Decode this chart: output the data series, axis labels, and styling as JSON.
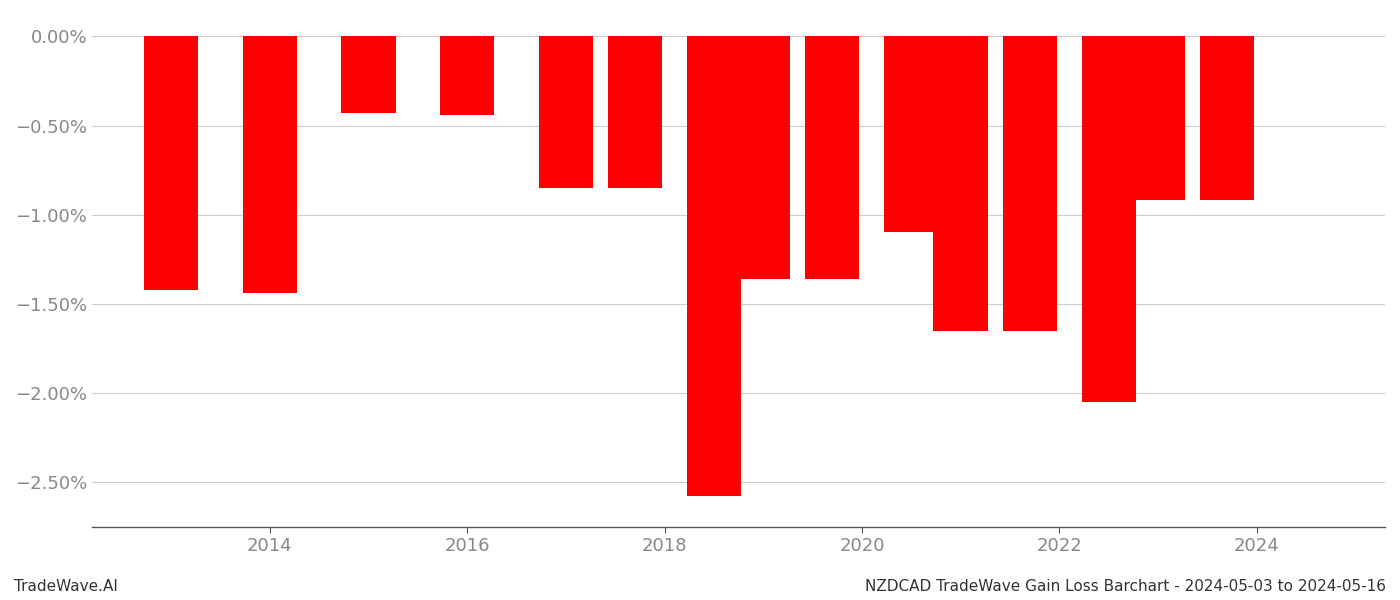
{
  "years": [
    2013,
    2014,
    2015,
    2016,
    2017,
    2017.7,
    2018.5,
    2019,
    2019.7,
    2020.5,
    2021,
    2021.7,
    2022.5,
    2023,
    2023.7
  ],
  "values": [
    -1.42,
    -1.44,
    -0.43,
    -0.44,
    -0.85,
    -0.85,
    -2.58,
    -1.36,
    -1.36,
    -1.1,
    -1.65,
    -1.65,
    -2.05,
    -0.92,
    -0.92
  ],
  "bar_color": "#ff0000",
  "bar_width": 0.55,
  "ylim_bottom": -2.75,
  "ylim_top": 0.12,
  "yticks": [
    0.0,
    -0.5,
    -1.0,
    -1.5,
    -2.0,
    -2.5
  ],
  "ytick_labels": [
    "0.00%",
    "−0.50%",
    "−1.00%",
    "−1.50%",
    "−2.00%",
    "−2.50%"
  ],
  "xticks": [
    2014,
    2016,
    2018,
    2020,
    2022,
    2024
  ],
  "footnote_left": "TradeWave.AI",
  "footnote_right": "NZDCAD TradeWave Gain Loss Barchart - 2024-05-03 to 2024-05-16",
  "grid_color": "#cccccc",
  "text_color": "#888888",
  "footnote_fontsize": 11,
  "tick_fontsize": 13,
  "background_color": "#ffffff"
}
